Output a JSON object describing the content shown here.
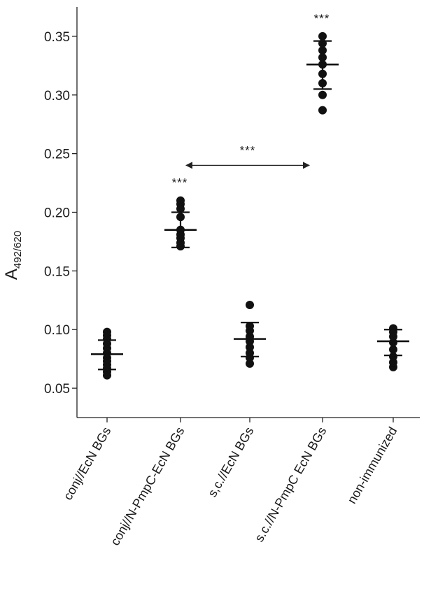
{
  "chart_data": {
    "type": "scatter",
    "ylabel": {
      "main": "A",
      "sub": "492/620"
    },
    "xlabel": "",
    "ylim": [
      0.025,
      0.375
    ],
    "yticks": [
      0.05,
      0.1,
      0.15,
      0.2,
      0.25,
      0.3,
      0.35
    ],
    "ytick_labels": [
      "0.05",
      "0.10",
      "0.15",
      "0.20",
      "0.25",
      "0.30",
      "0.35"
    ],
    "categories": [
      "conj//EcN BGs",
      "conj//N-PmpC-EcN BGs",
      "s,c.//EcN BGs",
      "s.c.//N-PmpC EcN BGs",
      "non-immunized"
    ],
    "groups": [
      {
        "points": [
          0.061,
          0.064,
          0.067,
          0.07,
          0.073,
          0.076,
          0.08,
          0.084,
          0.088,
          0.092,
          0.095,
          0.098
        ],
        "mean": 0.079,
        "sd_low": 0.066,
        "sd_high": 0.091,
        "sig": ""
      },
      {
        "points": [
          0.171,
          0.174,
          0.178,
          0.181,
          0.185,
          0.196,
          0.203,
          0.207,
          0.21
        ],
        "mean": 0.185,
        "sd_low": 0.17,
        "sd_high": 0.2,
        "sig": "***"
      },
      {
        "points": [
          0.071,
          0.076,
          0.08,
          0.085,
          0.09,
          0.094,
          0.099,
          0.103,
          0.121
        ],
        "mean": 0.092,
        "sd_low": 0.077,
        "sd_high": 0.106,
        "sig": ""
      },
      {
        "points": [
          0.287,
          0.3,
          0.31,
          0.318,
          0.326,
          0.332,
          0.338,
          0.344,
          0.35
        ],
        "mean": 0.326,
        "sd_low": 0.305,
        "sd_high": 0.346,
        "sig": "***"
      },
      {
        "points": [
          0.068,
          0.072,
          0.077,
          0.083,
          0.089,
          0.094,
          0.098,
          0.101
        ],
        "mean": 0.09,
        "sd_low": 0.078,
        "sd_high": 0.1,
        "sig": ""
      }
    ],
    "comparison": {
      "from": 1,
      "to": 3,
      "y": 0.24,
      "label": "***"
    },
    "grid": false,
    "marker_color": "#111111"
  }
}
